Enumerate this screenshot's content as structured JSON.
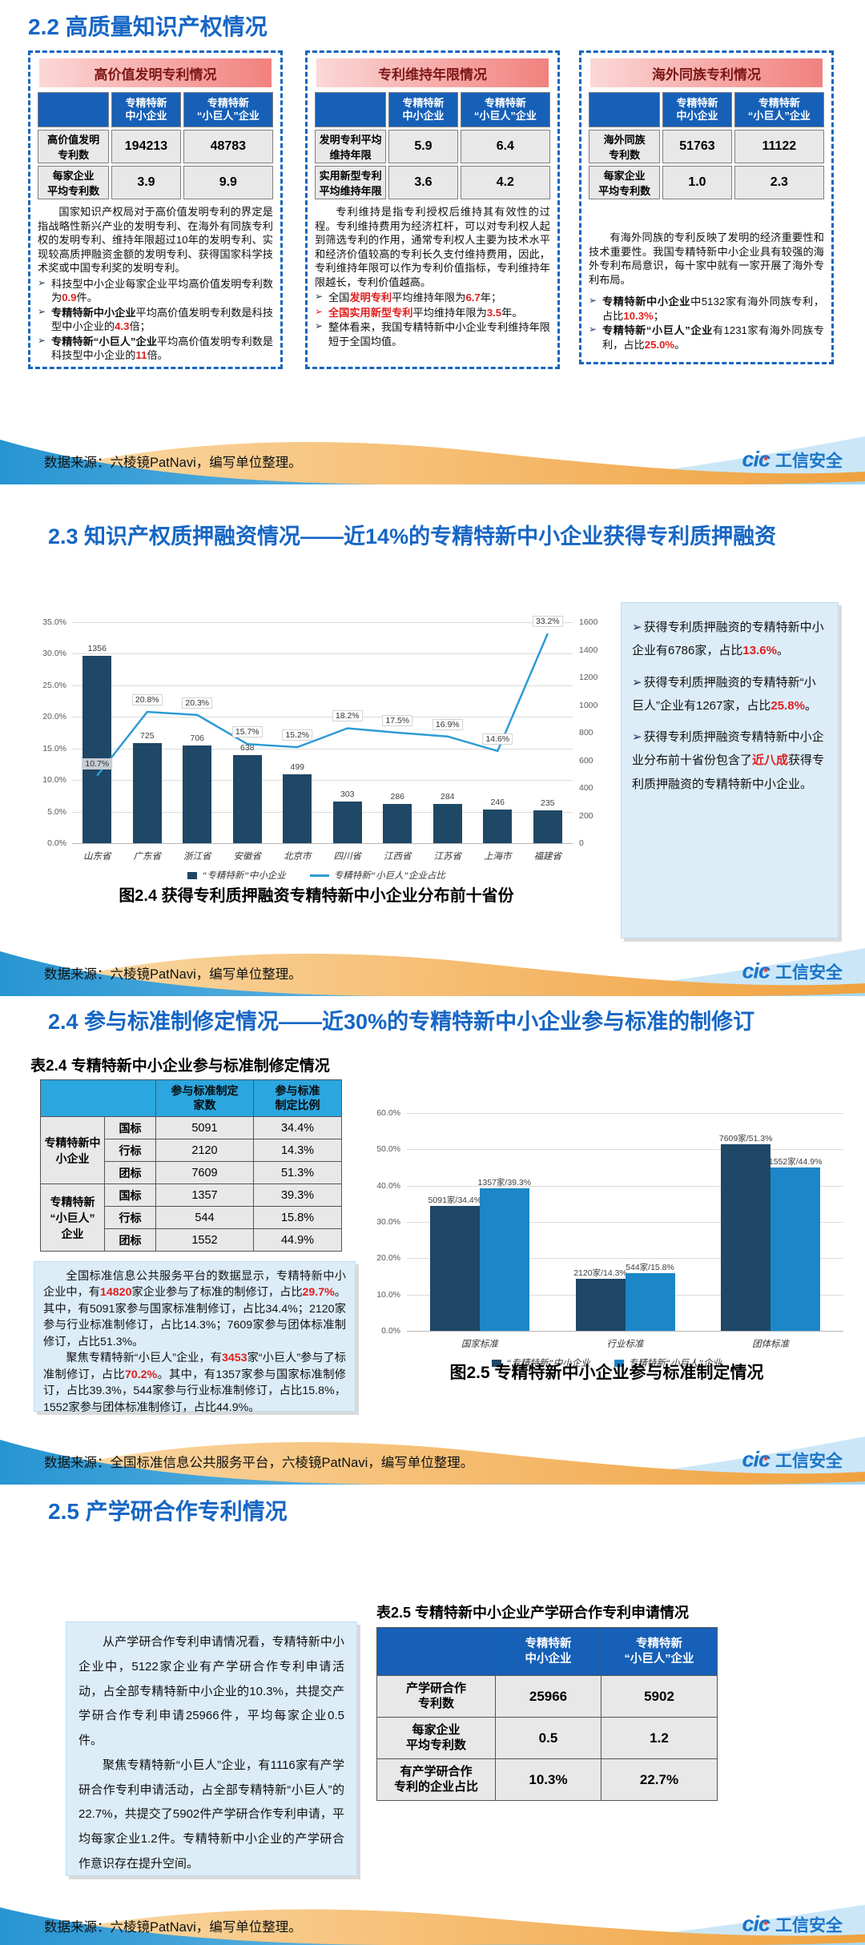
{
  "footer": {
    "source_patnavi": "数据来源：六棱镜PatNavi，编写单位整理。",
    "source_std": "数据来源：全国标准信息公共服务平台，六棱镜PatNavi，编写单位整理。",
    "logo_cic": "cic",
    "logo_text": "工信安全",
    "brand_blue": "#1B74C9",
    "star_red": "#E4392E"
  },
  "sec22": {
    "title": "2.2 高质量知识产权情况",
    "col_h1": "专精特新\n中小企业",
    "col_h2": "专精特新\n“小巨人”企业",
    "boxes": [
      {
        "header": "高价值发明专利情况",
        "rows": [
          {
            "label": "高价值发明\n专利数",
            "v1": "194213",
            "v2": "48783"
          },
          {
            "label": "每家企业\n平均专利数",
            "v1": "3.9",
            "v2": "9.9"
          }
        ],
        "para": [
          [
            {
              "t": "国家知识产权局对于高价值发明专利的界定是指战略性新兴产业的发明专利、在海外有同族专利权的发明专利、维持年限超过10年的发明专利、实现较高质押融资金额的发明专利、获得国家科学技术奖或中国专利奖的发明专利。"
            }
          ]
        ],
        "bullets": [
          {
            "segs": [
              {
                "t": "科技型中小企业每家企业平均高价值发明专利数为"
              },
              {
                "t": "0.9",
                "r": true
              },
              {
                "t": "件。"
              }
            ]
          },
          {
            "segs": [
              {
                "t": "专精特新中小企业",
                "b": true
              },
              {
                "t": "平均高价值发明专利数是科技型中小企业的"
              },
              {
                "t": "4.3",
                "r": true
              },
              {
                "t": "倍；"
              }
            ]
          },
          {
            "segs": [
              {
                "t": "专精特新“小巨人”企业",
                "b": true
              },
              {
                "t": "平均高价值发明专利数是科技型中小企业的"
              },
              {
                "t": "11",
                "r": true
              },
              {
                "t": "倍。"
              }
            ]
          }
        ]
      },
      {
        "header": "专利维持年限情况",
        "rows": [
          {
            "label": "发明专利平均\n维持年限",
            "v1": "5.9",
            "v2": "6.4"
          },
          {
            "label": "实用新型专利\n平均维持年限",
            "v1": "3.6",
            "v2": "4.2"
          }
        ],
        "para": [
          [
            {
              "t": "专利维持是指专利授权后维持其有效性的过程。专利维持费用为经济杠杆，可以对专利权人起到筛选专利的作用，通常专利权人主要为技术水平和经济价值较高的专利长久支付维持费用，因此，专利维持年限可以作为专利价值指标，专利维持年限越长，专利价值越高。"
            }
          ]
        ],
        "bullets": [
          {
            "segs": [
              {
                "t": "全国"
              },
              {
                "t": "发明专利",
                "r": true
              },
              {
                "t": "平均维持年限为"
              },
              {
                "t": "6.7",
                "r": true
              },
              {
                "t": "年；"
              }
            ]
          },
          {
            "ra": true,
            "segs": [
              {
                "t": "全国实用新型专利",
                "r": true
              },
              {
                "t": "平均维持年限为"
              },
              {
                "t": "3.5",
                "r": true
              },
              {
                "t": "年。"
              }
            ]
          },
          {
            "segs": [
              {
                "t": "整体看来，我国专精特新中小企业专利维持年限短于全国均值。"
              }
            ]
          }
        ]
      },
      {
        "header": "海外同族专利情况",
        "rows": [
          {
            "label": "海外同族\n专利数",
            "v1": "51763",
            "v2": "11122"
          },
          {
            "label": "每家企业\n平均专利数",
            "v1": "1.0",
            "v2": "2.3"
          }
        ],
        "para": [
          [
            {
              "t": "有海外同族的专利反映了发明的经济重要性和技术重要性。我国专精特新中小企业具有较强的海外专利布局意识，每十家中就有一家开展了海外专利布局。"
            }
          ]
        ],
        "bullets": [
          {
            "segs": [
              {
                "t": "专精特新中小企业",
                "b": true
              },
              {
                "t": "中5132家有海外同族专利，占比"
              },
              {
                "t": "10.3%",
                "r": true
              },
              {
                "t": "；"
              }
            ]
          },
          {
            "segs": [
              {
                "t": "专精特新“小巨人”企业",
                "b": true
              },
              {
                "t": "有1231家有海外同族专利，占比"
              },
              {
                "t": "25.0%",
                "r": true
              },
              {
                "t": "。"
              }
            ]
          }
        ]
      }
    ]
  },
  "sec23": {
    "title": "2.3 知识产权质押融资情况——近14%的专精特新中小企业获得专利质押融资",
    "bullets": [
      {
        "segs": [
          {
            "t": "获得专利质押融资的专精特新中小企业有6786家，占比"
          },
          {
            "t": "13.6%",
            "r": true
          },
          {
            "t": "。"
          }
        ]
      },
      {
        "segs": [
          {
            "t": "获得专利质押融资的专精特新“小巨人”企业有1267家，占比"
          },
          {
            "t": "25.8%",
            "r": true
          },
          {
            "t": "。"
          }
        ]
      },
      {
        "segs": [
          {
            "t": "获得专利质押融资专精特新中小企业分布前十省份包含了"
          },
          {
            "t": "近八成",
            "r": true
          },
          {
            "t": "获得专利质押融资的专精特新中小企业。"
          }
        ]
      }
    ]
  },
  "sec24": {
    "title": "2.4 参与标准制修定情况——近30%的专精特新中小企业参与标准的制修订",
    "table_caption": "表2.4 专精特新中小企业参与标准制修定情况",
    "table": {
      "h_count": "参与标准制定\n家数",
      "h_ratio": "参与标准\n制定比例",
      "groups": [
        {
          "label": "专精特新中\n小企业",
          "rows": [
            [
              "国标",
              "5091",
              "34.4%"
            ],
            [
              "行标",
              "2120",
              "14.3%"
            ],
            [
              "团标",
              "7609",
              "51.3%"
            ]
          ]
        },
        {
          "label": "专精特新\n“小巨人”\n企业",
          "rows": [
            [
              "国标",
              "1357",
              "39.3%"
            ],
            [
              "行标",
              "544",
              "15.8%"
            ],
            [
              "团标",
              "1552",
              "44.9%"
            ]
          ]
        }
      ]
    },
    "paras": [
      [
        {
          "t": "全国标准信息公共服务平台的数据显示，专精特新中小企业中，有"
        },
        {
          "t": "14820",
          "r": true
        },
        {
          "t": "家企业参与了标准的制修订，占比"
        },
        {
          "t": "29.7%",
          "r": true
        },
        {
          "t": "。其中，有5091家参与国家标准制修订，占比34.4%；2120家参与行业标准制修订，占比14.3%；7609家参与团体标准制修订，占比51.3%。"
        }
      ],
      [
        {
          "t": "聚焦专精特新“小巨人”企业，有"
        },
        {
          "t": "3453",
          "r": true
        },
        {
          "t": "家“小巨人”参与了标准制修订，占比"
        },
        {
          "t": "70.2%",
          "r": true
        },
        {
          "t": "。其中，有1357家参与国家标准制修订，占比39.3%，544家参与行业标准制修订，占比15.8%，1552家参与团体标准制修订，占比44.9%。"
        }
      ]
    ]
  },
  "sec25": {
    "title": "2.5 产学研合作专利情况",
    "paras": [
      [
        {
          "t": "从产学研合作专利申请情况看，专精特新中小企业中，5122家企业有产学研合作专利申请活动，占全部专精特新中小企业的10.3%，共提交产学研合作专利申请25966件，平均每家企业0.5件。"
        }
      ],
      [
        {
          "t": "聚焦专精特新“小巨人”企业，有1116家有产学研合作专利申请活动，占全部专精特新“小巨人”的22.7%，共提交了5902件产学研合作专利申请，平均每家企业1.2件。专精特新中小企业的产学研合作意识存在提升空间。"
        }
      ]
    ],
    "table_caption": "表2.5 专精特新中小企业产学研合作专利申请情况",
    "table": {
      "h1": "专精特新\n中小企业",
      "h2": "专精特新\n“小巨人”企业",
      "rows": [
        {
          "label": "产学研合作\n专利数",
          "v1": "25966",
          "v2": "5902"
        },
        {
          "label": "每家企业\n平均专利数",
          "v1": "0.5",
          "v2": "1.2"
        },
        {
          "label": "有产学研合作\n专利的企业占比",
          "v1": "10.3%",
          "v2": "22.7%"
        }
      ]
    }
  },
  "chart_data": [
    {
      "type": "bar+line",
      "title": "图2.4 获得专利质押融资专精特新中小企业分布前十省份",
      "categories": [
        "山东省",
        "广东省",
        "浙江省",
        "安徽省",
        "北京市",
        "四川省",
        "江西省",
        "江苏省",
        "上海市",
        "福建省"
      ],
      "series": [
        {
          "name": "“专精特新”中小企业",
          "type": "bar",
          "axis": "right",
          "color": "#1F4766",
          "values": [
            1356,
            725,
            706,
            638,
            499,
            303,
            286,
            284,
            246,
            235
          ]
        },
        {
          "name": "专精特新“小巨人”企业占比",
          "type": "line",
          "axis": "left",
          "color": "#2E9BD5",
          "unit": "%",
          "values": [
            10.7,
            20.8,
            20.3,
            15.7,
            15.2,
            18.2,
            17.5,
            16.9,
            14.6,
            33.2
          ]
        }
      ],
      "left_axis": {
        "min": 0,
        "max": 35,
        "step": 5,
        "format": "percent"
      },
      "right_axis": {
        "min": 0,
        "max": 1600,
        "step": 200
      },
      "grid": true,
      "legend_position": "bottom"
    },
    {
      "type": "bar",
      "title": "图2.5 专精特新中小企业参与标准制定情况",
      "categories": [
        "国家标准",
        "行业标准",
        "团体标准"
      ],
      "series": [
        {
          "name": "“专精特新”中小企业",
          "color": "#1F4766",
          "values": [
            34.4,
            14.3,
            51.3
          ],
          "labels": [
            "5091家/34.4%",
            "2120家/14.3%",
            "7609家/51.3%"
          ]
        },
        {
          "name": "专精特新“小巨人”企业",
          "color": "#1C86C8",
          "values": [
            39.3,
            15.8,
            44.9
          ],
          "labels": [
            "1357家/39.3%",
            "544家/15.8%",
            "1552家/44.9%"
          ]
        }
      ],
      "y_axis": {
        "min": 0,
        "max": 60,
        "step": 10,
        "format": "percent"
      },
      "grid": true,
      "legend_position": "bottom"
    }
  ]
}
